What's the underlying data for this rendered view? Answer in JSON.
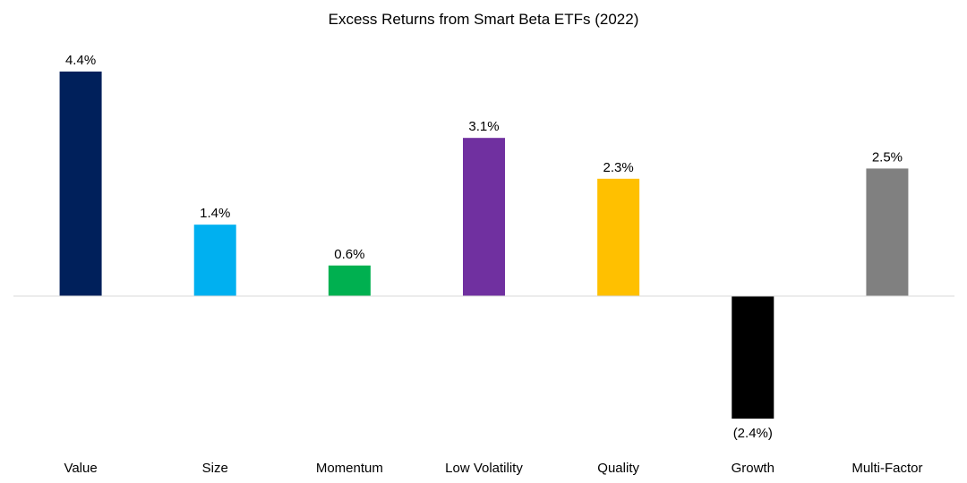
{
  "chart_data": {
    "type": "bar",
    "title": "Excess Returns from Smart Beta ETFs (2022)",
    "xlabel": "",
    "ylabel": "",
    "unit": "%",
    "ylim": [
      -2.4,
      4.4
    ],
    "grid": false,
    "legend": "none",
    "categories": [
      "Value",
      "Size",
      "Momentum",
      "Low Volatility",
      "Quality",
      "Growth",
      "Multi-Factor"
    ],
    "values": [
      4.4,
      1.4,
      0.6,
      3.1,
      2.3,
      -2.4,
      2.5
    ],
    "labels": [
      "4.4%",
      "1.4%",
      "0.6%",
      "3.1%",
      "2.3%",
      "(2.4%)",
      "2.5%"
    ],
    "colors": [
      "#00205B",
      "#00B0F0",
      "#00B050",
      "#7030A0",
      "#FFC000",
      "#000000",
      "#808080"
    ]
  }
}
